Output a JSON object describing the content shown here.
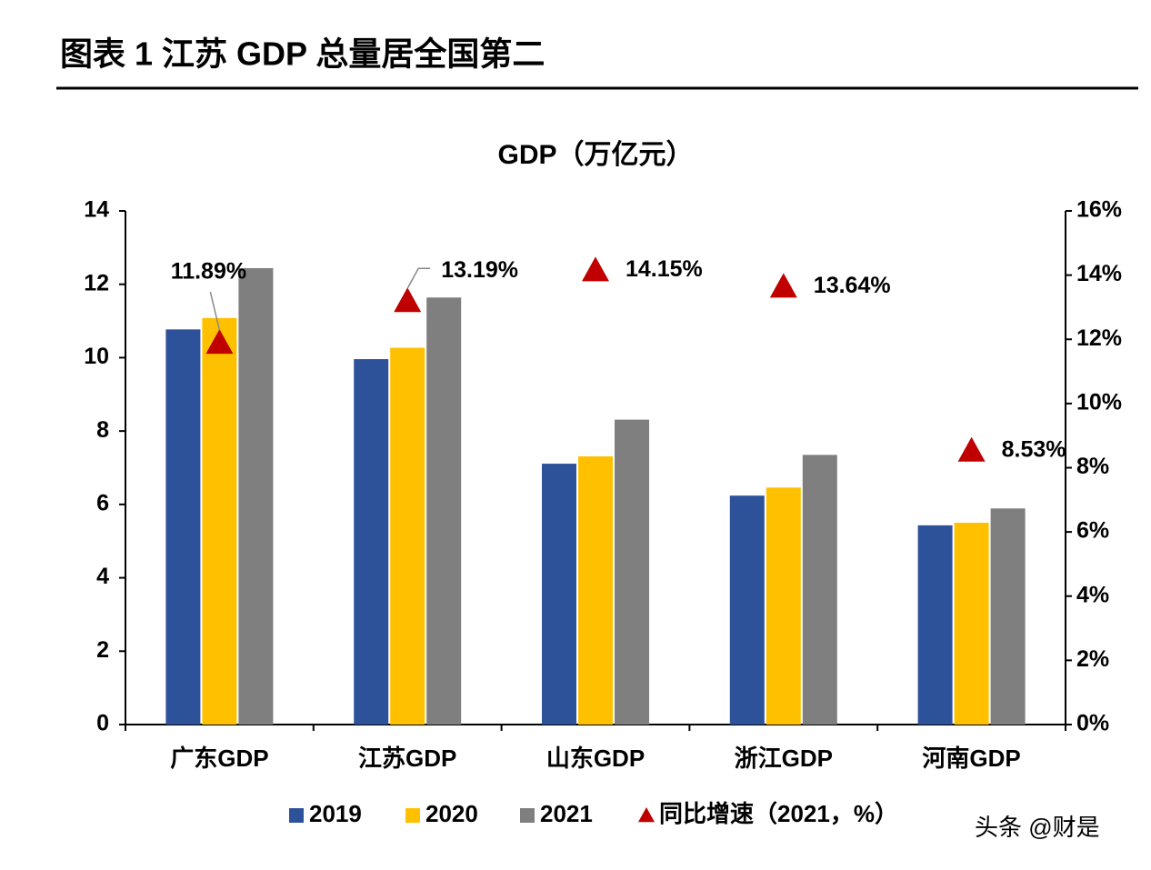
{
  "chart_data": {
    "type": "bar",
    "figure_title": "图表 1  江苏 GDP 总量居全国第二",
    "title": "GDP（万亿元）",
    "categories": [
      "广东GDP",
      "江苏GDP",
      "山东GDP",
      "浙江GDP",
      "河南GDP"
    ],
    "series": [
      {
        "name": "2019",
        "color": "#2e529a",
        "values": [
          10.77,
          9.96,
          7.11,
          6.24,
          5.43
        ]
      },
      {
        "name": "2020",
        "color": "#ffc000",
        "values": [
          11.08,
          10.27,
          7.31,
          6.46,
          5.5
        ]
      },
      {
        "name": "2021",
        "color": "#7f7f7f",
        "values": [
          12.44,
          11.64,
          8.31,
          7.35,
          5.89
        ]
      },
      {
        "name": "同比增速（2021，%）",
        "color": "#c00000",
        "type": "scatter",
        "axis": "y2",
        "values": [
          11.89,
          13.19,
          14.15,
          13.64,
          8.53
        ],
        "value_labels": [
          "11.89%",
          "13.19%",
          "14.15%",
          "13.64%",
          "8.53%"
        ]
      }
    ],
    "ylim": [
      0,
      14
    ],
    "yticks": [
      0,
      2,
      4,
      6,
      8,
      10,
      12,
      14
    ],
    "y2lim": [
      0,
      16
    ],
    "y2ticks": [
      {
        "value": 0,
        "label": "0%"
      },
      {
        "value": 2,
        "label": "2%"
      },
      {
        "value": 4,
        "label": "4%"
      },
      {
        "value": 6,
        "label": "6%"
      },
      {
        "value": 8,
        "label": "8%"
      },
      {
        "value": 10,
        "label": "10%"
      },
      {
        "value": 12,
        "label": "12%"
      },
      {
        "value": 14,
        "label": "14%"
      },
      {
        "value": 16,
        "label": "16%"
      }
    ],
    "grid": false,
    "legend": "bottom",
    "watermark": "头条 @财是"
  }
}
